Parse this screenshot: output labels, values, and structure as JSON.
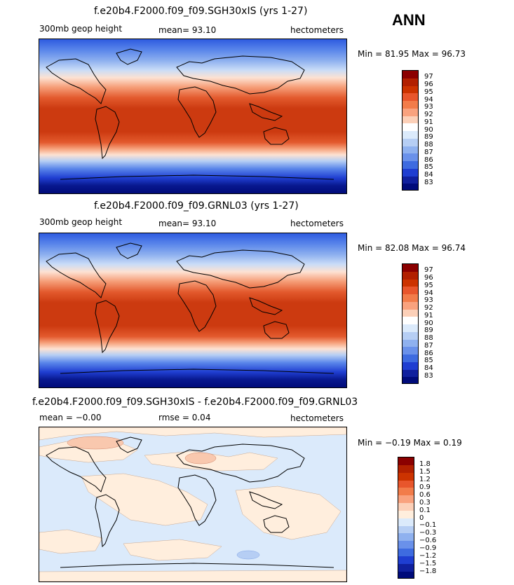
{
  "season": "ANN",
  "panels": [
    {
      "title": "f.e20b4.F2000.f09_f09.SGH30xIS (yrs 1-27)",
      "variable": "300mb geop height",
      "mean": "mean=  93.10",
      "units": "hectometers",
      "minmax": "Min =  81.95 Max =  96.73",
      "levels": [
        "97",
        "96",
        "95",
        "94",
        "93",
        "92",
        "91",
        "90",
        "89",
        "88",
        "87",
        "86",
        "85",
        "84",
        "83"
      ],
      "colors": [
        "#8b0000",
        "#b22000",
        "#cc3300",
        "#e8562c",
        "#f27c4a",
        "#f9a27e",
        "#fcd0b8",
        "#ffffff",
        "#dbeafb",
        "#b6cef4",
        "#8fb1ef",
        "#6a91ea",
        "#3e6be0",
        "#1f3ed1",
        "#10209e",
        "#000b7a"
      ]
    },
    {
      "title": "f.e20b4.F2000.f09_f09.GRNL03 (yrs 1-27)",
      "variable": "300mb geop height",
      "mean": "mean=  93.10",
      "units": "hectometers",
      "minmax": "Min =  82.08 Max =  96.74",
      "levels": [
        "97",
        "96",
        "95",
        "94",
        "93",
        "92",
        "91",
        "90",
        "89",
        "88",
        "87",
        "86",
        "85",
        "84",
        "83"
      ],
      "colors": [
        "#8b0000",
        "#b22000",
        "#cc3300",
        "#e8562c",
        "#f27c4a",
        "#f9a27e",
        "#fcd0b8",
        "#ffffff",
        "#dbeafb",
        "#b6cef4",
        "#8fb1ef",
        "#6a91ea",
        "#3e6be0",
        "#1f3ed1",
        "#10209e",
        "#000b7a"
      ]
    },
    {
      "title": "f.e20b4.F2000.f09_f09.SGH30xIS - f.e20b4.F2000.f09_f09.GRNL03",
      "variable": "mean =  −0.00",
      "mean": "rmse =   0.04",
      "units": "hectometers",
      "minmax": "Min =  −0.19 Max =   0.19",
      "levels": [
        "1.8",
        "1.5",
        "1.2",
        "0.9",
        "0.6",
        "0.3",
        "0.1",
        "0",
        "−0.1",
        "−0.3",
        "−0.6",
        "−0.9",
        "−1.2",
        "−1.5",
        "−1.8"
      ],
      "colors": [
        "#8b0000",
        "#b22000",
        "#cc3300",
        "#e8562c",
        "#f27c4a",
        "#f9a27e",
        "#fcd0b8",
        "#ffeedd",
        "#dbeafb",
        "#b6cef4",
        "#8fb1ef",
        "#6a91ea",
        "#3e6be0",
        "#1f3ed1",
        "#10209e",
        "#000b7a"
      ]
    }
  ]
}
